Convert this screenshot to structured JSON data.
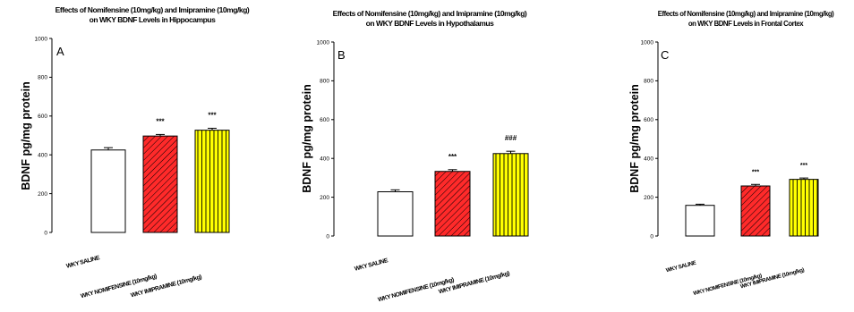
{
  "chart_data": [
    {
      "type": "bar",
      "panel": "A",
      "title": "Effects of Nomifensine (10mg/kg) and Imipramine (10mg/kg)",
      "subtitle": "on WKY BDNF Levels in Hippocampus",
      "xlabel": "",
      "ylabel": "BDNF pg/mg protein",
      "ylim": [
        0,
        1000
      ],
      "yticks": [
        "0",
        "200",
        "400",
        "600",
        "800",
        "1000"
      ],
      "categories": [
        "WKY SALINE",
        "WKY NOMIFENSINE (10mg/kg)",
        "WKY IMIPRAMINE (10mg/kg)"
      ],
      "values": [
        425,
        497,
        527
      ],
      "errors": [
        12,
        8,
        10
      ],
      "significance": [
        "",
        "***",
        "***"
      ],
      "fills": [
        "#ffffff",
        "#ff2a2a",
        "#ffff00"
      ],
      "patterns": [
        "none",
        "diagonal",
        "vertical"
      ]
    },
    {
      "type": "bar",
      "panel": "B",
      "title": "Effects of Nomifensine (10mg/kg) and Imipramine (10mg/kg)",
      "subtitle": "on WKY BDNF Levels in Hypothalamus",
      "xlabel": "",
      "ylabel": "BDNF pg/mg protein",
      "ylim": [
        0,
        1000
      ],
      "yticks": [
        "0",
        "200",
        "400",
        "600",
        "800",
        "1000"
      ],
      "categories": [
        "WKY SALINE",
        "WKY NOMIFENSINE (10mg/kg)",
        "WKY IMIPRAMINE (10mg/kg)"
      ],
      "values": [
        228,
        333,
        425
      ],
      "errors": [
        10,
        9,
        12
      ],
      "significance": [
        "",
        "***",
        "###"
      ],
      "fills": [
        "#ffffff",
        "#ff2a2a",
        "#ffff00"
      ],
      "patterns": [
        "none",
        "diagonal",
        "vertical"
      ]
    },
    {
      "type": "bar",
      "panel": "C",
      "title": "Effects of Nomifensine (10mg/kg) and Imipramine (10mg/kg)",
      "subtitle": "on WKY BDNF Levels in Frontal Cortex",
      "xlabel": "",
      "ylabel": "BDNF pg/mg protein",
      "ylim": [
        0,
        1000
      ],
      "yticks": [
        "0",
        "200",
        "400",
        "600",
        "800",
        "1000"
      ],
      "categories": [
        "WKY SALINE",
        "WKY NOMIFENSINE (10mg/kg)",
        "WKY IMIPRAMINE (10mg/kg)"
      ],
      "values": [
        158,
        258,
        292
      ],
      "errors": [
        6,
        8,
        7
      ],
      "significance": [
        "",
        "***",
        "***"
      ],
      "fills": [
        "#ffffff",
        "#ff2a2a",
        "#ffff00"
      ],
      "patterns": [
        "none",
        "diagonal",
        "vertical"
      ]
    }
  ]
}
